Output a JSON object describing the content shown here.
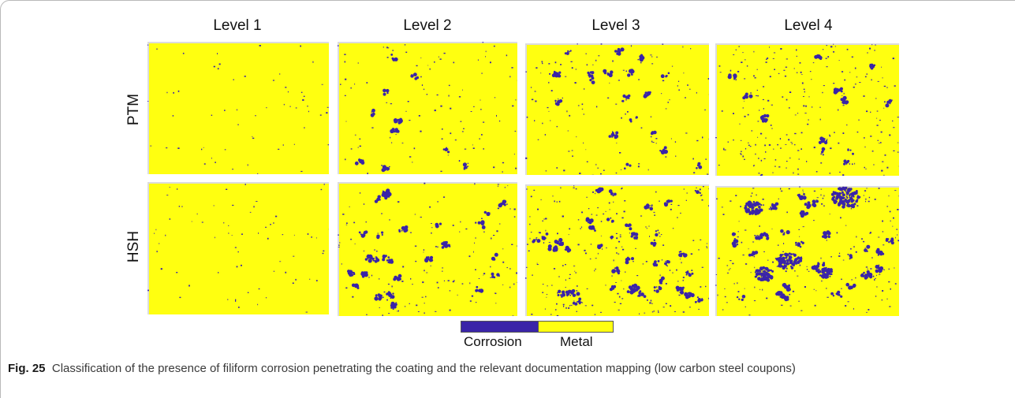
{
  "figure": {
    "columns": [
      "Level 1",
      "Level 2",
      "Level 3",
      "Level 4"
    ],
    "rows": [
      "PTM",
      "HSH"
    ],
    "legend": {
      "corrosion_label": "Corrosion",
      "metal_label": "Metal",
      "corrosion_color": "#3a24a8",
      "metal_color": "#ffff10"
    }
  },
  "caption": {
    "label": "Fig. 25",
    "text": "Classification of the presence of filiform corrosion penetrating the coating and the relevant documentation mapping (low carbon steel coupons)"
  }
}
